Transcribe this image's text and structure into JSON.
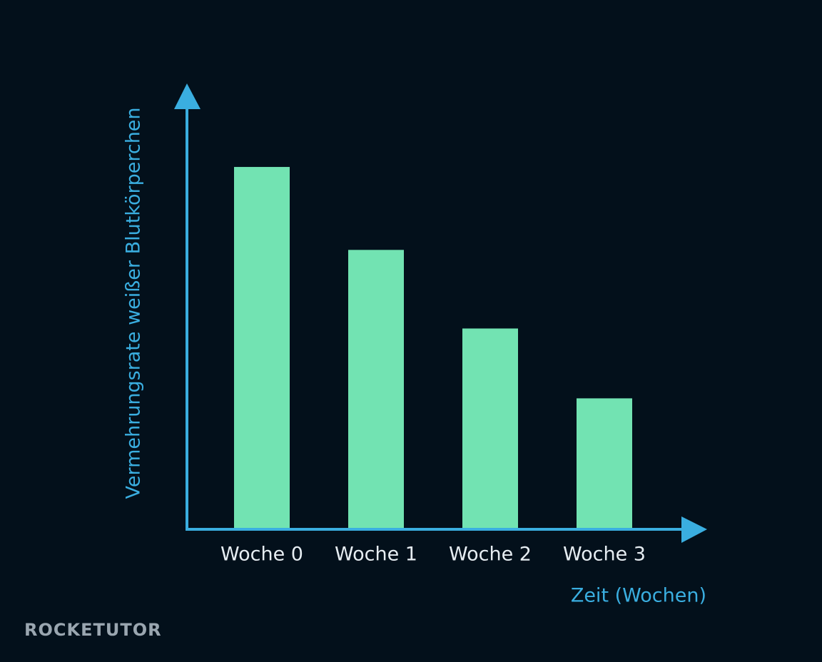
{
  "chart_data": {
    "type": "bar",
    "categories": [
      "Woche 0",
      "Woche 1",
      "Woche 2",
      "Woche 3"
    ],
    "values": [
      83,
      64,
      46,
      30
    ],
    "color": "#72e3b2",
    "ylim": [
      0,
      100
    ],
    "x_label": "Zeit (Wochen)",
    "y_label": "Vermehrungsrate weißer Blutkörperchen",
    "watermark": "ROCKETUTOR"
  }
}
